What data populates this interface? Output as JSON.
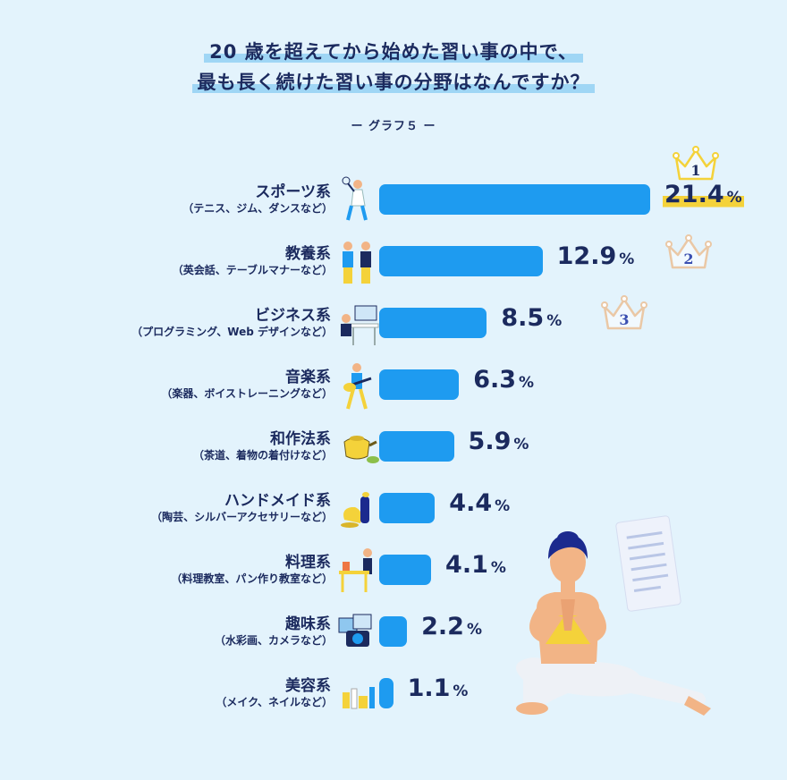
{
  "title": {
    "line1": "20 歳を超えてから始めた習い事の中で、",
    "line2": "最も長く続けた習い事の分野はなんですか？"
  },
  "subtitle": "ー グラフ５ ー",
  "colors": {
    "bar": "#1e9bf0",
    "text": "#1b2a5e",
    "highlight": "#f4d23a",
    "background": "#e3f3fc"
  },
  "chart_data": {
    "type": "bar",
    "orientation": "horizontal",
    "unit": "%",
    "categories": [
      {
        "name": "スポーツ系",
        "sub": "（テニス、ジム、ダンスなど）",
        "value": 21.4,
        "label": "21.4",
        "rank": "1",
        "icon": "tennis-player-icon"
      },
      {
        "name": "教養系",
        "sub": "（英会話、テーブルマナーなど）",
        "value": 12.9,
        "label": "12.9",
        "rank": "2",
        "icon": "conversation-people-icon"
      },
      {
        "name": "ビジネス系",
        "sub": "（プログラミング、Web デザインなど）",
        "value": 8.5,
        "label": "8.5",
        "rank": "3",
        "icon": "computer-desk-icon"
      },
      {
        "name": "音楽系",
        "sub": "（楽器、ボイストレーニングなど）",
        "value": 6.3,
        "label": "6.3",
        "icon": "guitarist-icon"
      },
      {
        "name": "和作法系",
        "sub": "（茶道、着物の着付けなど）",
        "value": 5.9,
        "label": "5.9",
        "icon": "teapot-icon"
      },
      {
        "name": "ハンドメイド系",
        "sub": "（陶芸、シルバーアクセサリーなど）",
        "value": 4.4,
        "label": "4.4",
        "icon": "pottery-icon"
      },
      {
        "name": "料理系",
        "sub": "（料理教室、パン作り教室など）",
        "value": 4.1,
        "label": "4.1",
        "icon": "cooking-icon"
      },
      {
        "name": "趣味系",
        "sub": "（水彩画、カメラなど）",
        "value": 2.2,
        "label": "2.2",
        "icon": "camera-photos-icon"
      },
      {
        "name": "美容系",
        "sub": "（メイク、ネイルなど）",
        "value": 1.1,
        "label": "1.1",
        "icon": "cosmetics-icon"
      }
    ]
  }
}
